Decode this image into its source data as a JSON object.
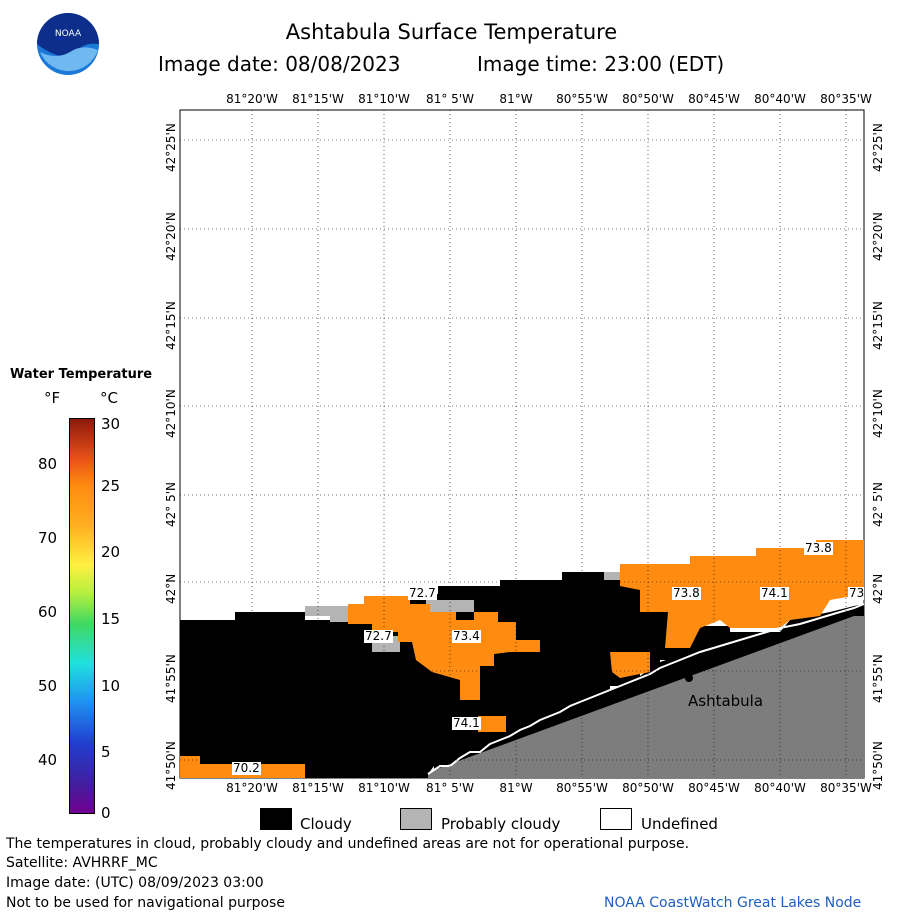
{
  "header": {
    "title": "Ashtabula Surface Temperature",
    "image_date": "Image date: 08/08/2023",
    "image_time": "Image time: 23:00 (EDT)"
  },
  "map": {
    "lon_labels": [
      "81°20'W",
      "81°15'W",
      "81°10'W",
      "81° 5'W",
      "81°W",
      "80°55'W",
      "80°50'W",
      "80°45'W",
      "80°40'W",
      "80°35'W"
    ],
    "lat_labels": [
      "42°25'N",
      "42°20'N",
      "42°15'N",
      "42°10'N",
      "42° 5'N",
      "42°N",
      "41°55'N",
      "41°50'N"
    ],
    "temperature_labels": [
      "73.8",
      "72.7",
      "73.8",
      "74.1",
      "73",
      "72.7",
      "73.4",
      "74.1",
      "70.2"
    ],
    "city": "Ashtabula"
  },
  "legend": {
    "title": "Water Temperature",
    "unit_f": "°F",
    "unit_c": "°C",
    "f_ticks": [
      "80",
      "70",
      "60",
      "50",
      "40"
    ],
    "c_ticks": [
      "30",
      "25",
      "20",
      "15",
      "10",
      "5",
      "0"
    ]
  },
  "key": {
    "cloudy": "Cloudy",
    "probably_cloudy": "Probably cloudy",
    "undefined": "Undefined"
  },
  "footer": {
    "note": "The temperatures in cloud, probably cloudy and undefined areas are not for operational purpose.",
    "satellite": "Satellite: AVHRRF_MC",
    "utc_date": "Image date: (UTC) 08/09/2023  03:00",
    "nav_warning": "Not to be used for navigational purpose",
    "credit": "NOAA CoastWatch Great Lakes Node"
  },
  "logo": {
    "text": "NOAA"
  },
  "colors": {
    "water_warm": "#ff8c10",
    "cloud": "#000000",
    "probably_cloudy": "#b4b4b4",
    "land": "#7d7d7d"
  }
}
